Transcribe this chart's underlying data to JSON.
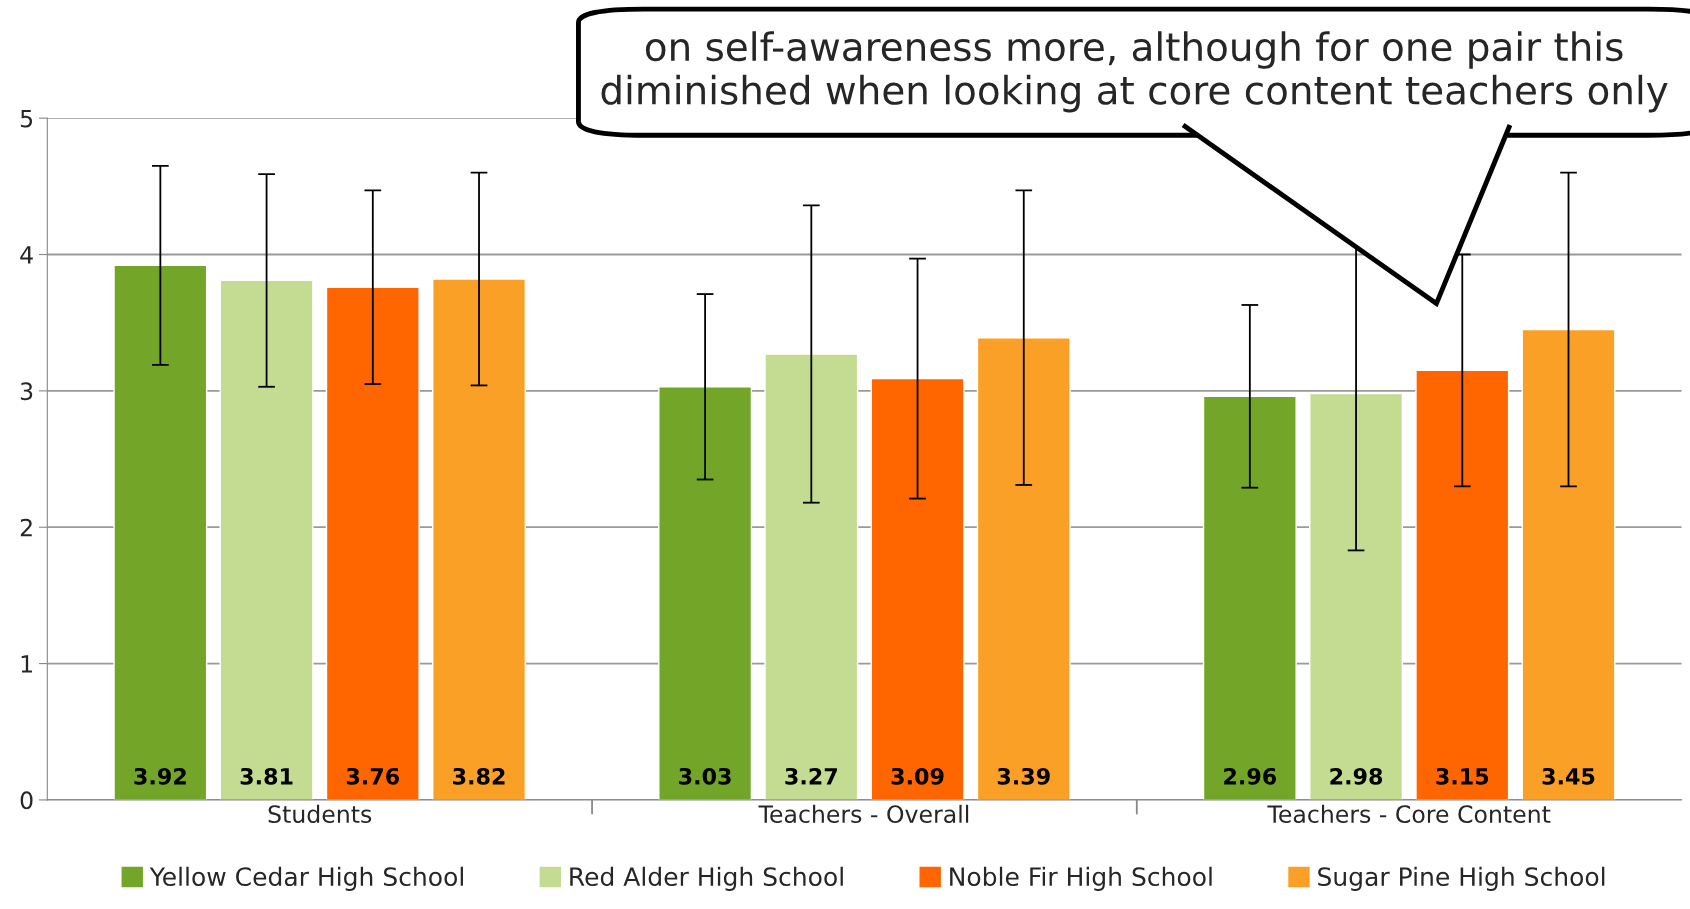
{
  "chart_data": {
    "type": "bar",
    "categories": [
      "Students",
      "Teachers - Overall",
      "Teachers - Core Content"
    ],
    "series": [
      {
        "name": "Yellow Cedar High School",
        "color": "#73a628",
        "values": [
          3.92,
          3.03,
          2.96
        ],
        "errors": [
          0.73,
          0.68,
          0.67
        ]
      },
      {
        "name": "Red Alder High School",
        "color": "#c4dc92",
        "values": [
          3.81,
          3.27,
          2.98
        ],
        "errors": [
          0.78,
          1.09,
          1.15
        ]
      },
      {
        "name": "Noble Fir High School",
        "color": "#ff6600",
        "values": [
          3.76,
          3.09,
          3.15
        ],
        "errors": [
          0.71,
          0.88,
          0.85
        ]
      },
      {
        "name": "Sugar Pine High School",
        "color": "#fba026",
        "values": [
          3.82,
          3.39,
          3.45
        ],
        "errors": [
          0.78,
          1.08,
          1.15
        ]
      }
    ],
    "ylim": [
      0,
      5
    ],
    "yticks": [
      0,
      1,
      2,
      3,
      4,
      5
    ],
    "grid": "y",
    "legend": "bottom",
    "data_labels": true,
    "annotations": [
      "on self-awareness more, although for one pair this\ndiminished when looking at core content teachers only"
    ]
  }
}
